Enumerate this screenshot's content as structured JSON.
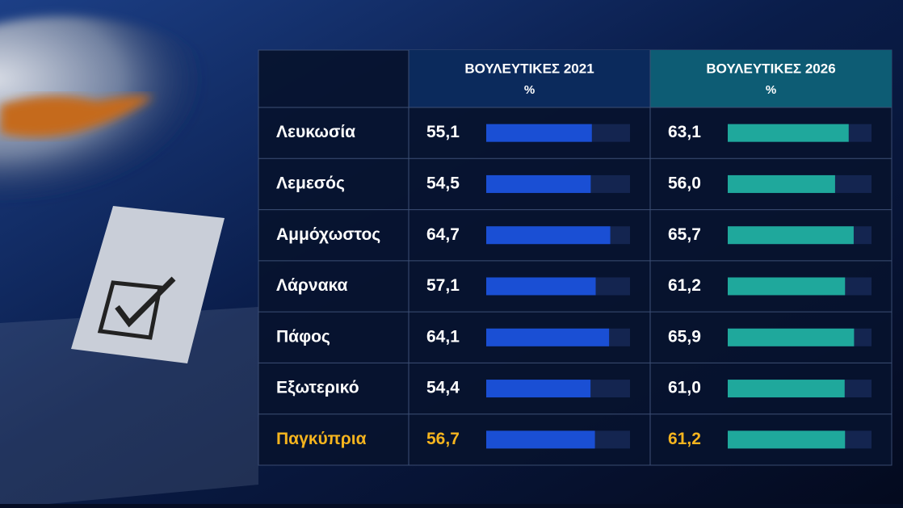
{
  "chart_data": {
    "type": "bar",
    "unit": "%",
    "categories": [
      "Λευκωσία",
      "Λεμεσός",
      "Αμμόχωστος",
      "Λάρνακα",
      "Πάφος",
      "Εξωτερικό",
      "Παγκύπρια"
    ],
    "highlight_color": "#f5b41e",
    "xlim": [
      0,
      75
    ],
    "series": [
      {
        "name": "ΒΟΥΛΕΥΤΙΚΕΣ 2021",
        "color": "#1a4fd4",
        "header_color": "#0b2a5c",
        "values": [
          55.1,
          54.5,
          64.7,
          57.1,
          64.1,
          54.4,
          56.7
        ],
        "value_labels": [
          "55,1",
          "54,5",
          "64,7",
          "57,1",
          "64,1",
          "54,4",
          "56,7"
        ]
      },
      {
        "name": "ΒΟΥΛΕΥΤΙΚΕΣ 2026",
        "color": "#1fa89c",
        "header_color": "#0d5c74",
        "values": [
          63.1,
          56.0,
          65.7,
          61.2,
          65.9,
          61.0,
          61.2
        ],
        "value_labels": [
          "63,1",
          "56,0",
          "65,7",
          "61,2",
          "65,9",
          "61,0",
          "61,2"
        ]
      }
    ]
  }
}
